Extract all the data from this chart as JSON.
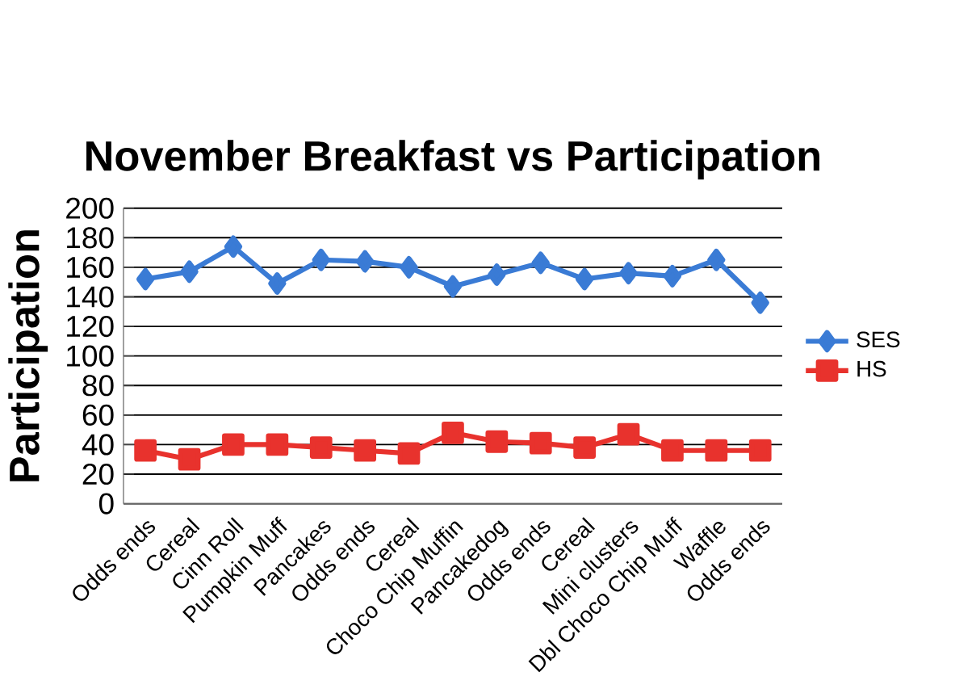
{
  "chart_data": {
    "type": "line",
    "title": "November Breakfast vs Participation",
    "ylabel": "Participation",
    "categories": [
      "Odds ends",
      "Cereal",
      "Cinn Roll",
      "Pumpkin Muff",
      "Pancakes",
      "Odds ends",
      "Cereal",
      "Choco Chip Muffin",
      "Pancakedog",
      "Odds ends",
      "Cereal",
      "Mini clusters",
      "Dbl Choco Chip Muff",
      "Waffle",
      "Odds ends"
    ],
    "series": [
      {
        "name": "SES",
        "color": "#3a7bd5",
        "marker": "diamond",
        "values": [
          152,
          157,
          174,
          149,
          165,
          164,
          160,
          147,
          155,
          163,
          152,
          156,
          154,
          165,
          136
        ]
      },
      {
        "name": "HS",
        "color": "#e8322d",
        "marker": "square",
        "values": [
          36,
          30,
          40,
          40,
          38,
          36,
          34,
          48,
          42,
          41,
          38,
          47,
          36,
          36,
          36
        ]
      }
    ],
    "ylim": [
      0,
      200
    ],
    "yticks": [
      0,
      20,
      40,
      60,
      80,
      100,
      120,
      140,
      160,
      180,
      200
    ],
    "grid": "y",
    "legend": "right"
  }
}
